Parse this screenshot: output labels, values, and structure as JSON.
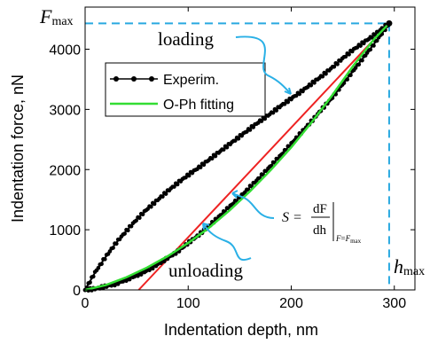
{
  "chart_data": {
    "type": "scatter",
    "xlabel": "Indentation depth, nm",
    "ylabel": "Indentation force, nN",
    "xlim": [
      0,
      320
    ],
    "ylim": [
      0,
      4700
    ],
    "x_ticks": [
      0,
      100,
      200,
      300
    ],
    "y_ticks": [
      0,
      1000,
      2000,
      3000,
      4000
    ],
    "grid": false,
    "legend": {
      "placement": "upper-left",
      "entries": [
        {
          "label": "Experim.",
          "color": "#000000",
          "style": "black line with dot markers"
        },
        {
          "label": "O-Ph fitting",
          "color": "#33dd33",
          "style": "green line"
        }
      ]
    },
    "series": [
      {
        "name": "Experim.",
        "role": "loading",
        "color": "#000000",
        "x": [
          0,
          10,
          20,
          30,
          40,
          50,
          60,
          70,
          80,
          90,
          100,
          110,
          120,
          130,
          140,
          150,
          160,
          170,
          180,
          190,
          200,
          210,
          220,
          230,
          240,
          250,
          260,
          270,
          280,
          290,
          295
        ],
        "y": [
          0,
          300,
          550,
          780,
          980,
          1170,
          1340,
          1490,
          1640,
          1780,
          1910,
          2030,
          2160,
          2290,
          2420,
          2550,
          2680,
          2810,
          2930,
          3060,
          3180,
          3300,
          3430,
          3560,
          3700,
          3850,
          3990,
          4110,
          4230,
          4370,
          4430
        ]
      },
      {
        "name": "Experim.",
        "role": "unloading",
        "color": "#000000",
        "x": [
          295,
          290,
          280,
          270,
          260,
          250,
          240,
          230,
          220,
          210,
          200,
          190,
          180,
          170,
          160,
          150,
          140,
          130,
          120,
          110,
          100,
          90,
          80,
          70,
          60,
          50,
          40,
          30,
          20,
          10,
          0
        ],
        "y": [
          4430,
          4310,
          4080,
          3860,
          3640,
          3420,
          3200,
          3010,
          2810,
          2620,
          2430,
          2240,
          2060,
          1880,
          1710,
          1540,
          1380,
          1220,
          1060,
          910,
          780,
          640,
          530,
          420,
          320,
          240,
          170,
          100,
          60,
          20,
          0
        ]
      },
      {
        "name": "O-Ph fitting",
        "color": "#33dd33",
        "x": [
          0,
          20,
          40,
          60,
          80,
          100,
          120,
          140,
          160,
          180,
          200,
          220,
          240,
          260,
          280,
          295
        ],
        "y": [
          0,
          80,
          210,
          370,
          560,
          780,
          1030,
          1320,
          1640,
          1990,
          2370,
          2790,
          3240,
          3720,
          4160,
          4430
        ]
      },
      {
        "name": "",
        "role": "tangent",
        "color": "#ee2222",
        "x": [
          52,
          295
        ],
        "y": [
          0,
          4430
        ]
      }
    ],
    "annotations": {
      "fmax": {
        "label": "F",
        "sub": "max",
        "value_y": 4430
      },
      "hmax": {
        "label": "h",
        "sub": "max",
        "value_x": 295
      },
      "loading": "loading",
      "unloading": "unloading",
      "stiffness": {
        "lhs": "S =",
        "num": "dF",
        "den": "dh",
        "cond_f": "F",
        "cond_eq": "=",
        "cond_fsub": "F",
        "cond_max": "max"
      }
    },
    "colors": {
      "experim": "#000000",
      "fit": "#33dd33",
      "tangent": "#ee2222",
      "guide": "#29a9e0",
      "annotation_arrow": "#2ab0e6"
    }
  }
}
